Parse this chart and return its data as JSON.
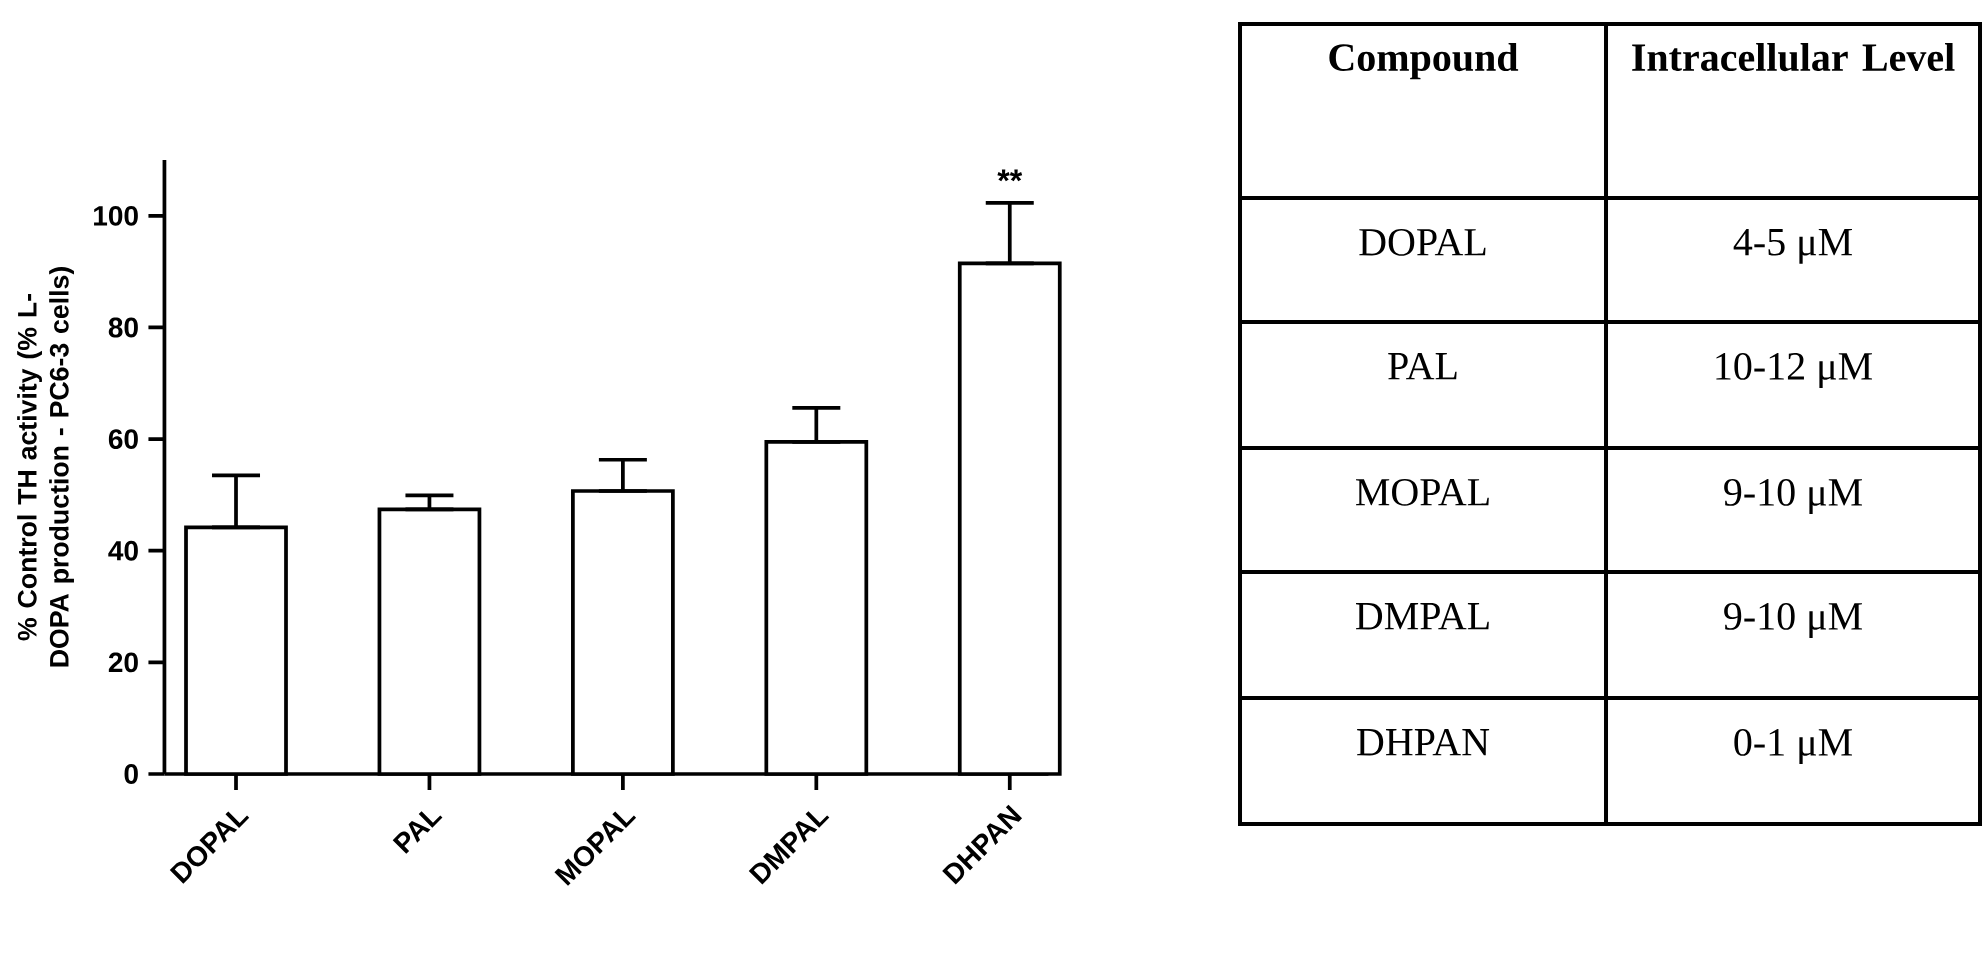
{
  "chart_data": [
    {
      "type": "bar",
      "ylabel": "% Control TH activity (% L-DOPA production - PC6-3 cells)",
      "categories": [
        "DOPAL",
        "PAL",
        "MOPAL",
        "DMPAL",
        "DHPAN"
      ],
      "values": [
        44.2,
        47.4,
        50.7,
        59.5,
        91.5
      ],
      "errors": [
        [
          44.2,
          53.5
        ],
        [
          47.4,
          49.9
        ],
        [
          50.7,
          56.3
        ],
        [
          59.5,
          65.6
        ],
        [
          91.5,
          102.3
        ]
      ],
      "color": "#ffffff",
      "ylim": [
        0,
        110
      ],
      "yticks": [
        0,
        20,
        40,
        60,
        80,
        100
      ],
      "grid": false,
      "annotations": [
        "**"
      ]
    },
    {
      "type": "other",
      "annotations": [
        "Compound",
        "Intracellular Level",
        "DOPAL",
        "4-5 μM",
        "PAL",
        "10-12 μM",
        "MOPAL",
        "9-10 μM",
        "DMPAL",
        "9-10 μM",
        "DHPAN",
        "0-1 μM"
      ]
    }
  ]
}
